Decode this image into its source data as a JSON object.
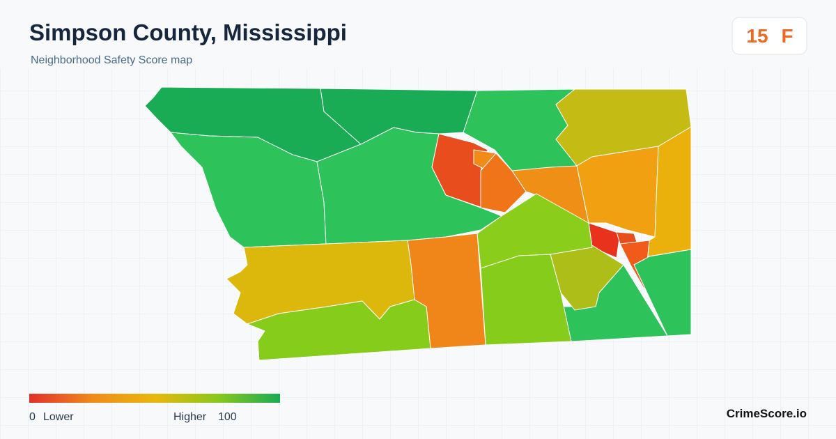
{
  "header": {
    "title": "Simpson County, Mississippi",
    "subtitle": "Neighborhood Safety Score map"
  },
  "score": {
    "value": 15,
    "grade": "F"
  },
  "legend": {
    "min": 0,
    "min_label": "Lower",
    "max_label": "Higher",
    "max": 100
  },
  "footer": {
    "brand": "CrimeScore.io"
  }
}
